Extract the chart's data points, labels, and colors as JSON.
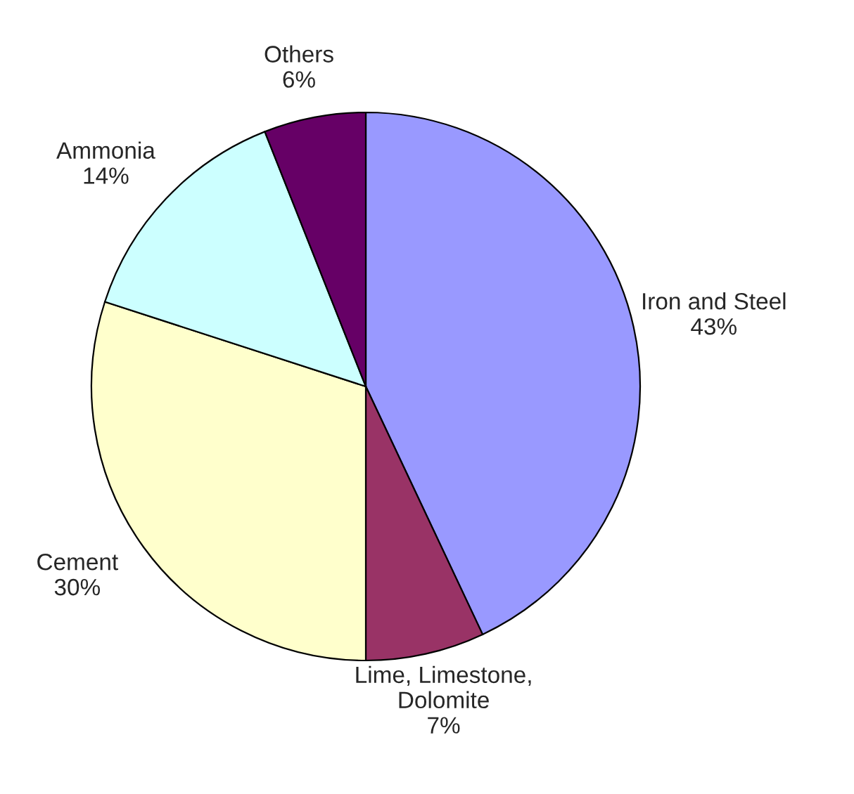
{
  "chart_data": {
    "type": "pie",
    "categories": [
      "Iron and Steel",
      "Lime, Limestone,\nDolomite",
      "Cement",
      "Ammonia",
      "Others"
    ],
    "values": [
      43,
      7,
      30,
      14,
      6
    ],
    "value_labels": [
      "43%",
      "7%",
      "30%",
      "14%",
      "6%"
    ],
    "colors": [
      "#9999ff",
      "#993366",
      "#ffffcc",
      "#ccffff",
      "#660066"
    ]
  }
}
